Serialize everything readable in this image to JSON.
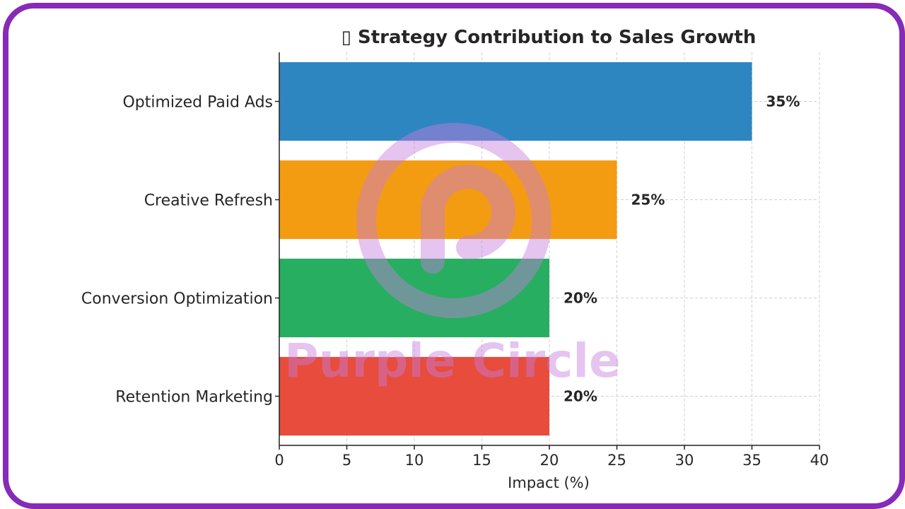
{
  "chart_data": {
    "type": "bar",
    "orientation": "horizontal",
    "title": "▯ Strategy Contribution to Sales Growth",
    "categories": [
      "Optimized Paid Ads",
      "Creative Refresh",
      "Conversion Optimization",
      "Retention Marketing"
    ],
    "values": [
      35,
      25,
      20,
      20
    ],
    "value_labels": [
      "35%",
      "25%",
      "20%",
      "20%"
    ],
    "colors": [
      "#2e86c1",
      "#f39c12",
      "#27ae60",
      "#e74c3c"
    ],
    "xlabel": "Impact (%)",
    "ylabel": "",
    "xlim": [
      0,
      40
    ],
    "xticks": [
      0,
      5,
      10,
      15,
      20,
      25,
      30,
      35,
      40
    ],
    "grid": true
  },
  "watermark": {
    "text": "Purple Circle",
    "color": "#c77dde"
  },
  "frame_color": "#862ab8"
}
